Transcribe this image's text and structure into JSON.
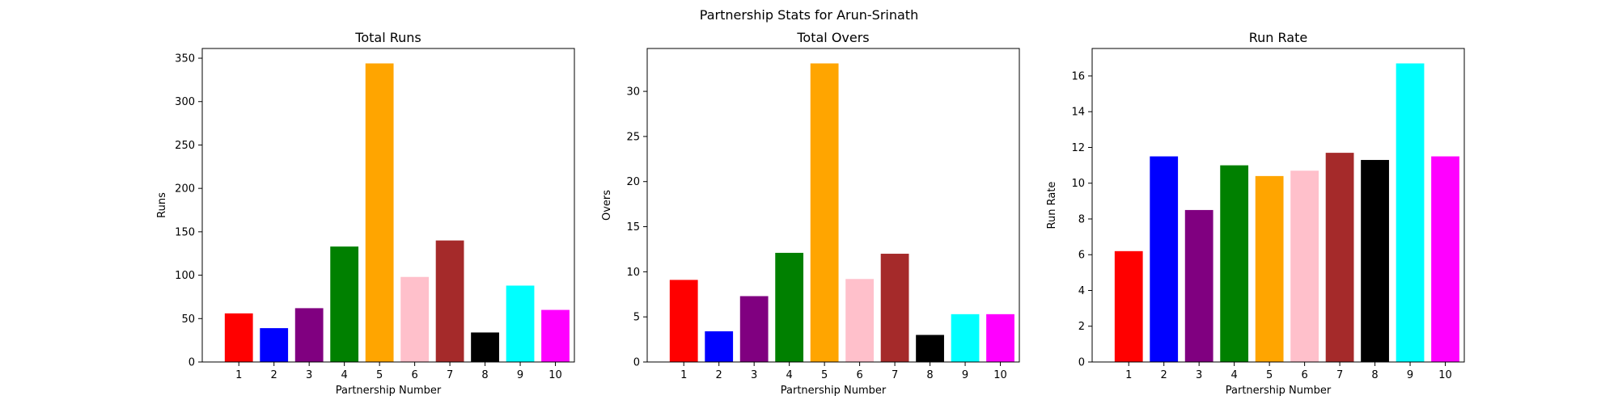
{
  "figure": {
    "suptitle": "Partnership Stats for Arun-Srinath"
  },
  "chart_data": [
    {
      "type": "bar",
      "title": "Total Runs",
      "xlabel": "Partnership Number",
      "ylabel": "Runs",
      "categories": [
        "1",
        "2",
        "3",
        "4",
        "5",
        "6",
        "7",
        "8",
        "9",
        "10"
      ],
      "values": [
        56,
        39,
        62,
        133,
        344,
        98,
        140,
        34,
        88,
        60
      ],
      "colors": [
        "#ff0000",
        "#0000ff",
        "#800080",
        "#008000",
        "#ffa500",
        "#ffc0cb",
        "#a52a2a",
        "#000000",
        "#00ffff",
        "#ff00ff"
      ],
      "ylim": [
        0,
        361.2
      ],
      "yticks": [
        0,
        50,
        100,
        150,
        200,
        250,
        300,
        350
      ],
      "grid": false
    },
    {
      "type": "bar",
      "title": "Total Overs",
      "xlabel": "Partnership Number",
      "ylabel": "Overs",
      "categories": [
        "1",
        "2",
        "3",
        "4",
        "5",
        "6",
        "7",
        "8",
        "9",
        "10"
      ],
      "values": [
        9.1,
        3.4,
        7.3,
        12.1,
        33.1,
        9.2,
        12.0,
        3.0,
        5.3,
        5.3
      ],
      "colors": [
        "#ff0000",
        "#0000ff",
        "#800080",
        "#008000",
        "#ffa500",
        "#ffc0cb",
        "#a52a2a",
        "#000000",
        "#00ffff",
        "#ff00ff"
      ],
      "ylim": [
        0,
        34.755
      ],
      "yticks": [
        0,
        5,
        10,
        15,
        20,
        25,
        30
      ],
      "grid": false
    },
    {
      "type": "bar",
      "title": "Run Rate",
      "xlabel": "Partnership Number",
      "ylabel": "Run Rate",
      "categories": [
        "1",
        "2",
        "3",
        "4",
        "5",
        "6",
        "7",
        "8",
        "9",
        "10"
      ],
      "values": [
        6.2,
        11.5,
        8.5,
        11.0,
        10.4,
        10.7,
        11.7,
        11.3,
        16.7,
        11.5
      ],
      "colors": [
        "#ff0000",
        "#0000ff",
        "#800080",
        "#008000",
        "#ffa500",
        "#ffc0cb",
        "#a52a2a",
        "#000000",
        "#00ffff",
        "#ff00ff"
      ],
      "ylim": [
        0,
        17.535
      ],
      "yticks": [
        0,
        2,
        4,
        6,
        8,
        10,
        12,
        14,
        16
      ],
      "grid": false
    }
  ]
}
